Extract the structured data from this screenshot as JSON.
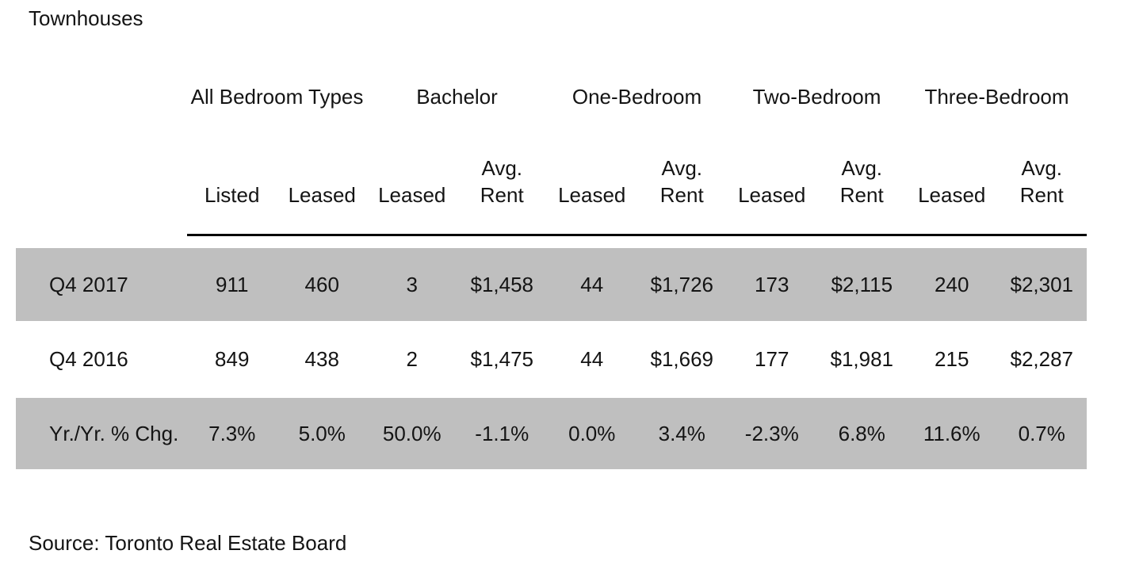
{
  "chart_data": {
    "type": "table",
    "title": "Townhouses",
    "source": "Source: Toronto Real Estate Board",
    "column_groups": [
      {
        "label": "All Bedroom Types",
        "span": 2
      },
      {
        "label": "Bachelor",
        "span": 2
      },
      {
        "label": "One-Bedroom",
        "span": 2
      },
      {
        "label": "Two-Bedroom",
        "span": 2
      },
      {
        "label": "Three-Bedroom",
        "span": 2
      }
    ],
    "sub_headers": [
      [
        "Listed"
      ],
      [
        "Leased"
      ],
      [
        "Leased"
      ],
      [
        "Avg.",
        "Rent"
      ],
      [
        "Leased"
      ],
      [
        "Avg.",
        "Rent"
      ],
      [
        "Leased"
      ],
      [
        "Avg.",
        "Rent"
      ],
      [
        "Leased"
      ],
      [
        "Avg.",
        "Rent"
      ]
    ],
    "rows": [
      {
        "label": "Q4 2017",
        "highlight": true,
        "values": [
          "911",
          "460",
          "3",
          "$1,458",
          "44",
          "$1,726",
          "173",
          "$2,115",
          "240",
          "$2,301"
        ]
      },
      {
        "label": "Q4 2016",
        "highlight": false,
        "values": [
          "849",
          "438",
          "2",
          "$1,475",
          "44",
          "$1,669",
          "177",
          "$1,981",
          "215",
          "$2,287"
        ]
      },
      {
        "label": "Yr./Yr. % Chg.",
        "highlight": true,
        "values": [
          "7.3%",
          "5.0%",
          "50.0%",
          "-1.1%",
          "0.0%",
          "3.4%",
          "-2.3%",
          "6.8%",
          "11.6%",
          "0.7%"
        ]
      }
    ],
    "layout": {
      "highlight_color": "#bfbfbf",
      "rule_color": "#000000",
      "text_color": "#141414",
      "legend": "none",
      "grid": "off"
    }
  }
}
